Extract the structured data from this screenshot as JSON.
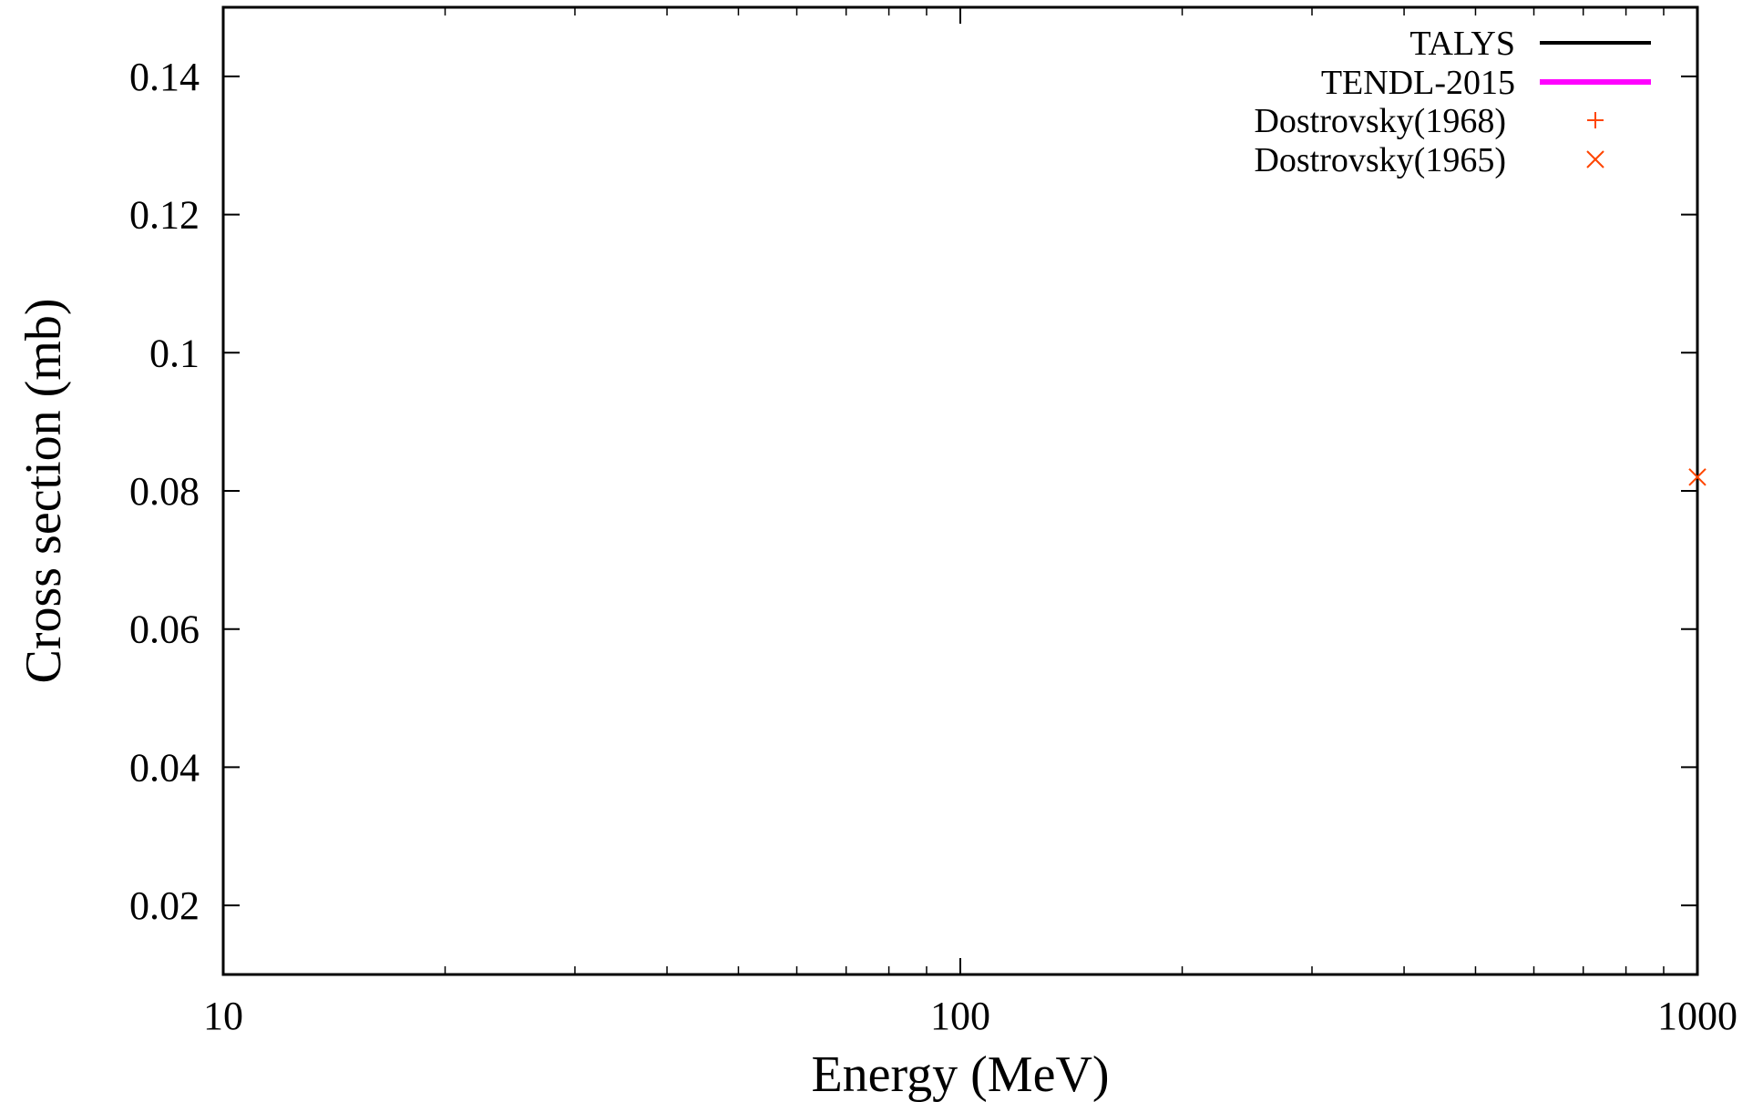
{
  "chart_data": {
    "type": "scatter",
    "xlabel": "Energy (MeV)",
    "ylabel": "Cross section (mb)",
    "xscale": "log",
    "xlim": [
      10,
      1000
    ],
    "ylim": [
      0.01,
      0.15
    ],
    "x_ticks": [
      {
        "value": 10,
        "label": "10"
      },
      {
        "value": 100,
        "label": "100"
      },
      {
        "value": 1000,
        "label": "1000"
      }
    ],
    "y_ticks": [
      {
        "value": 0.02,
        "label": "0.02"
      },
      {
        "value": 0.04,
        "label": "0.04"
      },
      {
        "value": 0.06,
        "label": "0.06"
      },
      {
        "value": 0.08,
        "label": "0.08"
      },
      {
        "value": 0.1,
        "label": "0.1"
      },
      {
        "value": 0.12,
        "label": "0.12"
      },
      {
        "value": 0.14,
        "label": "0.14"
      }
    ],
    "grid": false,
    "legend_position": "top-right",
    "series": [
      {
        "name": "TALYS",
        "style": "line",
        "color": "#000000",
        "points": []
      },
      {
        "name": "TENDL-2015",
        "style": "line",
        "color": "#ff00ff",
        "points": []
      },
      {
        "name": "Dostrovsky(1968)",
        "style": "plus",
        "color": "#ff4500",
        "points": []
      },
      {
        "name": "Dostrovsky(1965)",
        "style": "cross",
        "color": "#ff4500",
        "points": [
          {
            "x": 1000,
            "y": 0.082
          }
        ]
      }
    ]
  }
}
